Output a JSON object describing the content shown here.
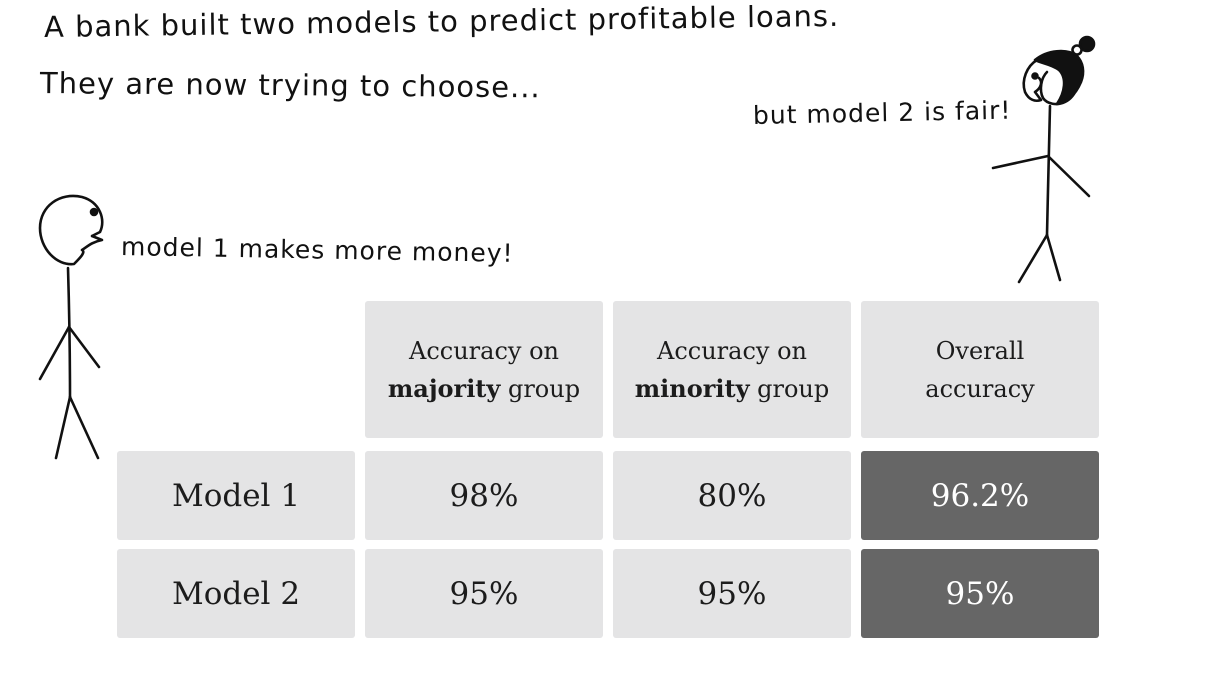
{
  "intro": {
    "line1": "A bank built two models to predict profitable loans.",
    "line2": "They are now trying to choose..."
  },
  "speech": {
    "woman": "but model 2 is fair!",
    "man": "model 1 makes more money!"
  },
  "table": {
    "headers": [
      {
        "line1": "Accuracy on",
        "bold": "majority",
        "suffix": " group"
      },
      {
        "line1": "Accuracy on",
        "bold": "minority",
        "suffix": " group"
      },
      {
        "line1": "Overall",
        "bold": "",
        "suffix": "accuracy"
      }
    ],
    "rows": [
      {
        "label": "Model 1",
        "values": [
          "98%",
          "80%",
          "96.2%"
        ]
      },
      {
        "label": "Model 2",
        "values": [
          "95%",
          "95%",
          "95%"
        ]
      }
    ]
  },
  "colors": {
    "cell_background": "#e4e4e5",
    "highlight_background": "#666666",
    "highlight_text": "#ffffff"
  }
}
